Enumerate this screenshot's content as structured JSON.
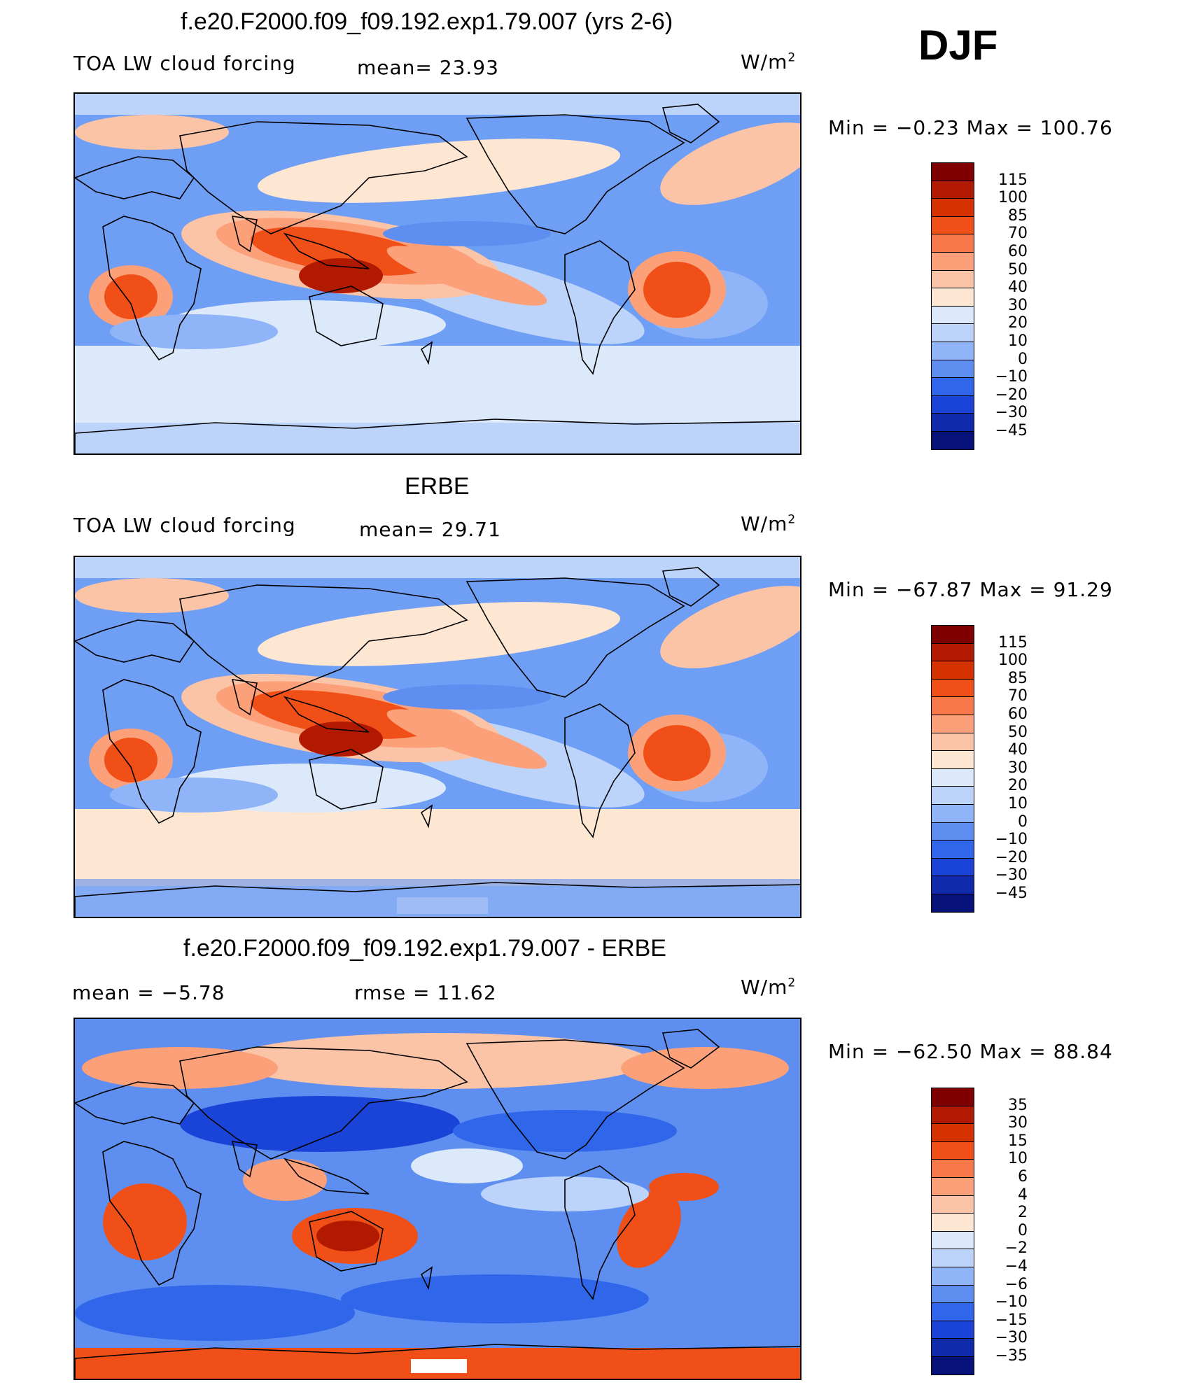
{
  "season": "DJF",
  "panels": [
    {
      "title": "f.e20.F2000.f09_f09.192.exp1.79.007 (yrs 2-6)",
      "left_label": "TOA LW cloud forcing",
      "stat1": "mean=   23.93",
      "units": "W/m",
      "minmax": "Min  =   −0.23  Max  =  100.76",
      "colorbar": {
        "levels": [
          "115",
          "100",
          "85",
          "70",
          "60",
          "50",
          "40",
          "30",
          "20",
          "10",
          "0",
          "−10",
          "−20",
          "−30",
          "−45"
        ],
        "colors": [
          "#7f0000",
          "#b11a00",
          "#d63200",
          "#f05018",
          "#f8784a",
          "#fca07a",
          "#fcc4a6",
          "#fde6d2",
          "#dbe9fb",
          "#bcd4fa",
          "#8fb4f7",
          "#5d8ef0",
          "#2f66ea",
          "#1a44d8",
          "#0f2aaa",
          "#06127a"
        ]
      },
      "map": {
        "base": "#6f9ef5",
        "style": "model"
      }
    },
    {
      "title": "ERBE",
      "left_label": "TOA LW cloud forcing",
      "stat1": "mean=   29.71",
      "units": "W/m",
      "minmax": "Min  =  −67.87  Max  =    91.29",
      "colorbar": {
        "levels": [
          "115",
          "100",
          "85",
          "70",
          "60",
          "50",
          "40",
          "30",
          "20",
          "10",
          "0",
          "−10",
          "−20",
          "−30",
          "−45"
        ],
        "colors": [
          "#7f0000",
          "#b11a00",
          "#d63200",
          "#f05018",
          "#f8784a",
          "#fca07a",
          "#fcc4a6",
          "#fde6d2",
          "#dbe9fb",
          "#bcd4fa",
          "#8fb4f7",
          "#5d8ef0",
          "#2f66ea",
          "#1a44d8",
          "#0f2aaa",
          "#06127a"
        ]
      },
      "map": {
        "base": "#6f9ef5",
        "style": "obs"
      }
    },
    {
      "title": "f.e20.F2000.f09_f09.192.exp1.79.007 - ERBE",
      "left_label": "mean  =     −5.78",
      "stat1": "rmse  =     11.62",
      "units": "W/m",
      "minmax": "Min  =  −62.50  Max  =    88.84",
      "colorbar": {
        "levels": [
          "35",
          "30",
          "15",
          "10",
          "6",
          "4",
          "2",
          "0",
          "−2",
          "−4",
          "−6",
          "−10",
          "−15",
          "−30",
          "−35"
        ],
        "colors": [
          "#7f0000",
          "#b11a00",
          "#d63200",
          "#f05018",
          "#f8784a",
          "#fca07a",
          "#fcc4a6",
          "#fde6d2",
          "#dbe9fb",
          "#bcd4fa",
          "#8fb4f7",
          "#5d8ef0",
          "#2f66ea",
          "#1a44d8",
          "#0f2aaa",
          "#06127a"
        ]
      },
      "map": {
        "base": "#3b6ee8",
        "style": "diff"
      }
    }
  ],
  "units_exponent": "2",
  "chart_data": [
    {
      "type": "heatmap",
      "title": "f.e20.F2000.f09_f09.192.exp1.79.007 (yrs 2-6)",
      "variable": "TOA LW cloud forcing",
      "units": "W/m2",
      "mean": 23.93,
      "min": -0.23,
      "max": 100.76,
      "levels": [
        -45,
        -30,
        -20,
        -10,
        0,
        10,
        20,
        30,
        40,
        50,
        60,
        70,
        85,
        100,
        115
      ]
    },
    {
      "type": "heatmap",
      "title": "ERBE",
      "variable": "TOA LW cloud forcing",
      "units": "W/m2",
      "mean": 29.71,
      "min": -67.87,
      "max": 91.29,
      "levels": [
        -45,
        -30,
        -20,
        -10,
        0,
        10,
        20,
        30,
        40,
        50,
        60,
        70,
        85,
        100,
        115
      ]
    },
    {
      "type": "heatmap",
      "title": "f.e20.F2000.f09_f09.192.exp1.79.007 - ERBE",
      "units": "W/m2",
      "mean": -5.78,
      "rmse": 11.62,
      "min": -62.5,
      "max": 88.84,
      "levels": [
        -35,
        -30,
        -15,
        -10,
        -6,
        -4,
        -2,
        0,
        2,
        4,
        6,
        10,
        15,
        30,
        35
      ]
    }
  ]
}
